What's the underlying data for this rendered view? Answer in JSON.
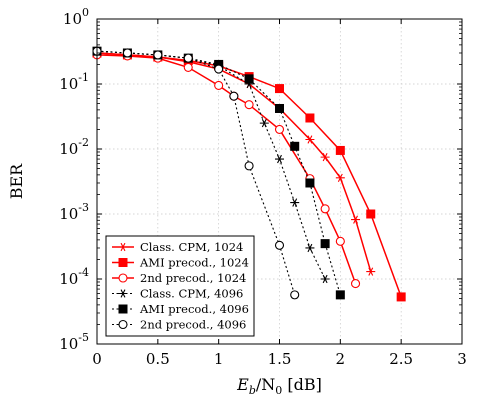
{
  "chart_data": {
    "type": "line",
    "xlabel": {
      "pre": "E",
      "pre_sub": "b",
      "mid": "/N",
      "mid_sub": "0",
      "post": " [dB]"
    },
    "ylabel": "BER",
    "xlim": [
      0,
      3
    ],
    "ylim": [
      1e-05,
      1
    ],
    "yscale": "log",
    "xticks": [
      "0",
      "0.5",
      "1",
      "1.5",
      "2",
      "2.5",
      "3"
    ],
    "yticks": [
      {
        "base": "10",
        "exp": "0"
      },
      {
        "base": "10",
        "exp": "-1"
      },
      {
        "base": "10",
        "exp": "-2"
      },
      {
        "base": "10",
        "exp": "-3"
      },
      {
        "base": "10",
        "exp": "-4"
      },
      {
        "base": "10",
        "exp": "-5"
      }
    ],
    "grid": true,
    "legend_position": "bottom-left",
    "series": [
      {
        "name": "Class. CPM, 1024",
        "color": "#ff0000",
        "dash": "solid",
        "marker": "asterisk",
        "x": [
          0,
          0.25,
          0.5,
          0.75,
          1,
          1.25,
          1.5,
          1.75,
          1.875,
          2.0,
          2.125,
          2.25
        ],
        "y": [
          0.3,
          0.28,
          0.26,
          0.22,
          0.17,
          0.1,
          0.042,
          0.014,
          0.0075,
          0.0036,
          0.00082,
          0.00013
        ]
      },
      {
        "name": "AMI precod., 1024",
        "color": "#ff0000",
        "dash": "solid",
        "marker": "square",
        "x": [
          0,
          0.25,
          0.5,
          0.75,
          1,
          1.25,
          1.5,
          1.75,
          2.0,
          2.25,
          2.5
        ],
        "y": [
          0.3,
          0.28,
          0.26,
          0.23,
          0.19,
          0.13,
          0.085,
          0.03,
          0.0095,
          0.001,
          5.3e-05
        ]
      },
      {
        "name": "2nd precod., 1024",
        "color": "#ff0000",
        "dash": "solid",
        "marker": "circle",
        "x": [
          0,
          0.25,
          0.5,
          0.75,
          1,
          1.125,
          1.25,
          1.5,
          1.75,
          1.875,
          2.0,
          2.125
        ],
        "y": [
          0.28,
          0.27,
          0.25,
          0.18,
          0.095,
          0.065,
          0.048,
          0.02,
          0.0035,
          0.0012,
          0.00038,
          8.5e-05
        ]
      },
      {
        "name": "Class. CPM, 4096",
        "color": "#000000",
        "dash": "dotted",
        "marker": "asterisk",
        "x": [
          0,
          0.25,
          0.5,
          0.75,
          1,
          1.25,
          1.375,
          1.5,
          1.625,
          1.75,
          1.875
        ],
        "y": [
          0.32,
          0.3,
          0.28,
          0.25,
          0.19,
          0.1,
          0.025,
          0.007,
          0.0015,
          0.0003,
          0.0001
        ]
      },
      {
        "name": "AMI precod., 4096",
        "color": "#000000",
        "dash": "dotted",
        "marker": "square",
        "x": [
          0,
          0.25,
          0.5,
          0.75,
          1,
          1.25,
          1.5,
          1.625,
          1.75,
          1.875,
          2.0
        ],
        "y": [
          0.32,
          0.3,
          0.28,
          0.25,
          0.2,
          0.12,
          0.042,
          0.011,
          0.003,
          0.00035,
          5.7e-05
        ]
      },
      {
        "name": "2nd precod., 4096",
        "color": "#000000",
        "dash": "dotted",
        "marker": "circle",
        "x": [
          0,
          0.25,
          0.5,
          0.75,
          1,
          1.125,
          1.25,
          1.5,
          1.625
        ],
        "y": [
          0.32,
          0.3,
          0.28,
          0.25,
          0.17,
          0.065,
          0.0055,
          0.00033,
          5.7e-05
        ]
      }
    ]
  }
}
